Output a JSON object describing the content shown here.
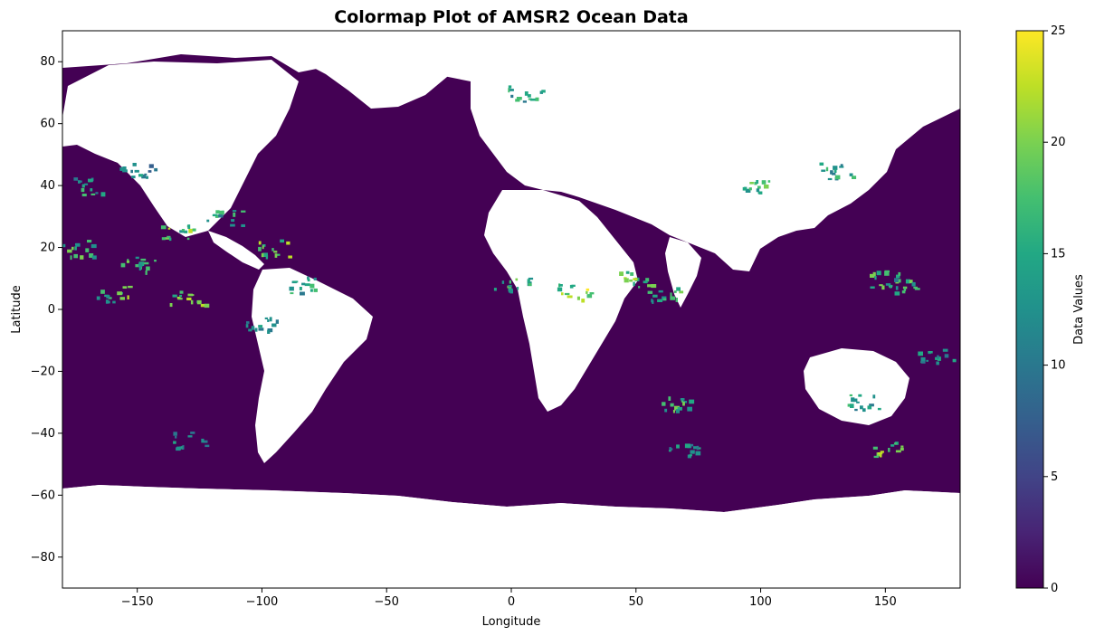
{
  "chart_data": {
    "type": "heatmap",
    "title": "Colormap Plot of AMSR2 Ocean Data",
    "xlabel": "Longitude",
    "ylabel": "Latitude",
    "xlim": [
      -180,
      180
    ],
    "ylim": [
      -90,
      90
    ],
    "x_ticks": [
      -150,
      -100,
      -50,
      0,
      50,
      100,
      150
    ],
    "y_ticks": [
      80,
      60,
      40,
      20,
      0,
      -20,
      -40,
      -60,
      -80
    ],
    "grid": false,
    "colormap": "viridis",
    "colorbar": {
      "label": "Data Values",
      "vmin": 0,
      "vmax": 25,
      "ticks": [
        0,
        5,
        10,
        15,
        20,
        25
      ]
    },
    "ocean_coverage_lat": [
      -65,
      83
    ],
    "dominant_value": 0,
    "high_value_regions": [
      {
        "lon": -150,
        "lat": 15,
        "value": 20
      },
      {
        "lon": -135,
        "lat": 25,
        "value": 22
      },
      {
        "lon": -115,
        "lat": 30,
        "value": 18
      },
      {
        "lon": -95,
        "lat": 20,
        "value": 24
      },
      {
        "lon": -160,
        "lat": 5,
        "value": 22
      },
      {
        "lon": -130,
        "lat": 4,
        "value": 24
      },
      {
        "lon": -100,
        "lat": -5,
        "value": 16
      },
      {
        "lon": -85,
        "lat": 8,
        "value": 18
      },
      {
        "lon": -150,
        "lat": 45,
        "value": 15
      },
      {
        "lon": -170,
        "lat": 40,
        "value": 18
      },
      {
        "lon": -175,
        "lat": 20,
        "value": 20
      },
      {
        "lon": 0,
        "lat": 8,
        "value": 20
      },
      {
        "lon": 25,
        "lat": 6,
        "value": 25
      },
      {
        "lon": 50,
        "lat": 10,
        "value": 24
      },
      {
        "lon": 60,
        "lat": 5,
        "value": 20
      },
      {
        "lon": 100,
        "lat": 40,
        "value": 20
      },
      {
        "lon": 130,
        "lat": 45,
        "value": 18
      },
      {
        "lon": 150,
        "lat": 10,
        "value": 22
      },
      {
        "lon": 170,
        "lat": -15,
        "value": 18
      },
      {
        "lon": 155,
        "lat": 8,
        "value": 20
      },
      {
        "lon": 65,
        "lat": -30,
        "value": 20
      },
      {
        "lon": 70,
        "lat": -45,
        "value": 16
      },
      {
        "lon": 140,
        "lat": -30,
        "value": 18
      },
      {
        "lon": 150,
        "lat": -45,
        "value": 24
      },
      {
        "lon": -130,
        "lat": -42,
        "value": 15
      },
      {
        "lon": 5,
        "lat": 70,
        "value": 20
      }
    ]
  }
}
